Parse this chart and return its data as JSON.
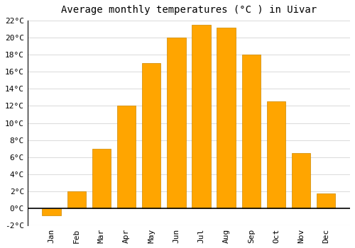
{
  "title": "Average monthly temperatures (°C ) in Uivar",
  "months": [
    "Jan",
    "Feb",
    "Mar",
    "Apr",
    "May",
    "Jun",
    "Jul",
    "Aug",
    "Sep",
    "Oct",
    "Nov",
    "Dec"
  ],
  "temperatures": [
    -0.8,
    2.0,
    7.0,
    12.0,
    17.0,
    20.0,
    21.5,
    21.2,
    18.0,
    12.5,
    6.5,
    1.7
  ],
  "bar_color": "#FFA500",
  "bar_edge_color": "#CC8800",
  "background_color": "#FFFFFF",
  "grid_color": "#DDDDDD",
  "ylim": [
    -2,
    22
  ],
  "yticks": [
    -2,
    0,
    2,
    4,
    6,
    8,
    10,
    12,
    14,
    16,
    18,
    20,
    22
  ],
  "title_fontsize": 10,
  "tick_fontsize": 8,
  "zero_line_color": "#000000"
}
